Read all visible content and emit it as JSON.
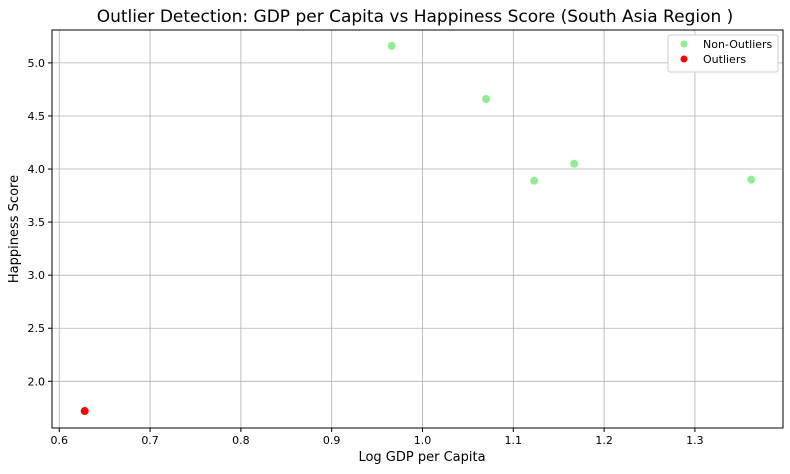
{
  "chart_data": {
    "type": "scatter",
    "title": "Outlier Detection: GDP per Capita vs Happiness Score (South Asia Region )",
    "xlabel": "Log GDP per Capita",
    "ylabel": "Happiness Score",
    "xlim": [
      0.592,
      1.397
    ],
    "ylim": [
      1.56,
      5.31
    ],
    "xticks": [
      "0.6",
      "0.7",
      "0.8",
      "0.9",
      "1.0",
      "1.1",
      "1.2",
      "1.3"
    ],
    "yticks": [
      "2.0",
      "2.5",
      "3.0",
      "3.5",
      "4.0",
      "4.5",
      "5.0"
    ],
    "grid": true,
    "legend_position": "top-right",
    "series": [
      {
        "name": "Non-Outliers",
        "color": "#90ee90",
        "points": [
          {
            "x": 0.966,
            "y": 5.16
          },
          {
            "x": 1.07,
            "y": 4.66
          },
          {
            "x": 1.123,
            "y": 3.89
          },
          {
            "x": 1.167,
            "y": 4.05
          },
          {
            "x": 1.362,
            "y": 3.9
          }
        ]
      },
      {
        "name": "Outliers",
        "color": "#ff0000",
        "points": [
          {
            "x": 0.628,
            "y": 1.72
          }
        ]
      }
    ]
  }
}
